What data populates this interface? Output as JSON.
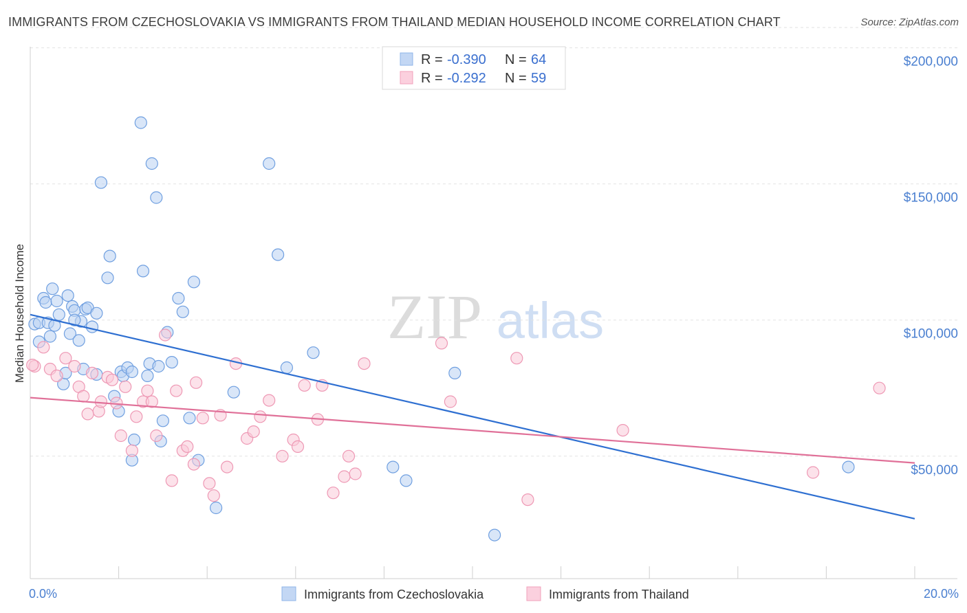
{
  "header": {
    "title": "IMMIGRANTS FROM CZECHOSLOVAKIA VS IMMIGRANTS FROM THAILAND MEDIAN HOUSEHOLD INCOME CORRELATION CHART",
    "source": "Source: ZipAtlas.com"
  },
  "watermark": {
    "zip": "ZIP",
    "atlas": "atlas"
  },
  "legend_box": {
    "rows": [
      {
        "r_label": "R = ",
        "r_value": "-0.390",
        "n_label": "N = ",
        "n_value": "64",
        "color": "#a9c6ef"
      },
      {
        "r_label": "R = ",
        "r_value": "-0.292",
        "n_label": "N = ",
        "n_value": "59",
        "color": "#f5b8cb"
      }
    ]
  },
  "chart_data": {
    "type": "scatter",
    "ylabel": "Median Household Income",
    "xlim": [
      0,
      20
    ],
    "ylim": [
      5000,
      210000
    ],
    "x_tick_labels": {
      "min": "0.0%",
      "max": "20.0%"
    },
    "y_ticks": [
      {
        "value": 50000,
        "label": "$50,000"
      },
      {
        "value": 100000,
        "label": "$100,000"
      },
      {
        "value": 150000,
        "label": "$150,000"
      },
      {
        "value": 200000,
        "label": "$200,000"
      }
    ],
    "grid": "horizontal dashed",
    "series": [
      {
        "name": "Immigrants from Czechoslovakia",
        "color": "#6f9fe0",
        "fill": "#b9d1f2",
        "trend": {
          "x": [
            0,
            20
          ],
          "y": [
            102000,
            27000
          ],
          "color": "#2e6fd1"
        },
        "points": [
          [
            0.1,
            98500
          ],
          [
            0.2,
            99000
          ],
          [
            0.3,
            108000
          ],
          [
            0.35,
            106500
          ],
          [
            0.4,
            99000
          ],
          [
            0.45,
            94000
          ],
          [
            0.5,
            111500
          ],
          [
            0.55,
            98000
          ],
          [
            0.65,
            102000
          ],
          [
            0.75,
            76500
          ],
          [
            0.8,
            80500
          ],
          [
            0.85,
            109000
          ],
          [
            0.9,
            95000
          ],
          [
            0.95,
            105000
          ],
          [
            1.0,
            103500
          ],
          [
            1.1,
            92500
          ],
          [
            1.15,
            99500
          ],
          [
            1.25,
            104000
          ],
          [
            1.3,
            104500
          ],
          [
            1.4,
            97500
          ],
          [
            1.5,
            102500
          ],
          [
            1.6,
            150500
          ],
          [
            1.5,
            80000
          ],
          [
            1.75,
            115500
          ],
          [
            1.8,
            123500
          ],
          [
            1.9,
            72000
          ],
          [
            2.05,
            81000
          ],
          [
            2.1,
            79500
          ],
          [
            2.2,
            82500
          ],
          [
            2.3,
            81000
          ],
          [
            2.35,
            56000
          ],
          [
            2.3,
            48500
          ],
          [
            2.5,
            172500
          ],
          [
            2.55,
            118000
          ],
          [
            2.65,
            79500
          ],
          [
            2.7,
            84000
          ],
          [
            2.75,
            157500
          ],
          [
            2.85,
            145000
          ],
          [
            2.9,
            83000
          ],
          [
            2.95,
            55500
          ],
          [
            3.0,
            63000
          ],
          [
            3.1,
            95500
          ],
          [
            3.2,
            84500
          ],
          [
            3.35,
            108000
          ],
          [
            3.45,
            103000
          ],
          [
            3.6,
            64000
          ],
          [
            3.7,
            114000
          ],
          [
            3.8,
            48500
          ],
          [
            4.2,
            31000
          ],
          [
            4.6,
            73500
          ],
          [
            5.4,
            157500
          ],
          [
            5.6,
            124000
          ],
          [
            5.8,
            82500
          ],
          [
            6.4,
            88000
          ],
          [
            8.2,
            46000
          ],
          [
            8.5,
            41000
          ],
          [
            9.6,
            80500
          ],
          [
            10.5,
            21000
          ],
          [
            18.5,
            46000
          ],
          [
            1.0,
            100000
          ],
          [
            0.6,
            107000
          ],
          [
            0.2,
            92000
          ],
          [
            1.2,
            82000
          ],
          [
            2.0,
            66500
          ]
        ]
      },
      {
        "name": "Immigrants from Thailand",
        "color": "#ee98b4",
        "fill": "#f9cbd9",
        "trend": {
          "x": [
            0,
            20
          ],
          "y": [
            71500,
            47500
          ],
          "color": "#e07098"
        },
        "points": [
          [
            0.1,
            83000
          ],
          [
            0.3,
            90000
          ],
          [
            0.45,
            82000
          ],
          [
            0.6,
            79500
          ],
          [
            0.8,
            86000
          ],
          [
            1.0,
            83000
          ],
          [
            1.1,
            75500
          ],
          [
            1.2,
            72000
          ],
          [
            1.3,
            65500
          ],
          [
            1.4,
            80500
          ],
          [
            1.55,
            66500
          ],
          [
            1.6,
            70000
          ],
          [
            1.75,
            79000
          ],
          [
            1.85,
            78000
          ],
          [
            1.95,
            69500
          ],
          [
            2.05,
            57500
          ],
          [
            2.15,
            75500
          ],
          [
            2.3,
            52000
          ],
          [
            2.4,
            64500
          ],
          [
            2.55,
            70000
          ],
          [
            2.65,
            74000
          ],
          [
            2.75,
            70000
          ],
          [
            2.85,
            57500
          ],
          [
            3.05,
            94500
          ],
          [
            3.2,
            41000
          ],
          [
            3.3,
            74000
          ],
          [
            3.45,
            52000
          ],
          [
            3.55,
            53500
          ],
          [
            3.7,
            47000
          ],
          [
            3.75,
            77000
          ],
          [
            3.9,
            64000
          ],
          [
            4.05,
            40000
          ],
          [
            4.15,
            35500
          ],
          [
            4.3,
            65000
          ],
          [
            4.45,
            46000
          ],
          [
            4.65,
            84000
          ],
          [
            4.9,
            56500
          ],
          [
            5.05,
            59000
          ],
          [
            5.2,
            64500
          ],
          [
            5.4,
            70500
          ],
          [
            5.7,
            50000
          ],
          [
            5.95,
            56000
          ],
          [
            6.05,
            53500
          ],
          [
            6.2,
            76000
          ],
          [
            6.5,
            63500
          ],
          [
            6.6,
            76000
          ],
          [
            6.85,
            36500
          ],
          [
            7.1,
            42500
          ],
          [
            7.2,
            50000
          ],
          [
            7.35,
            43500
          ],
          [
            7.55,
            84000
          ],
          [
            9.3,
            91500
          ],
          [
            9.5,
            70000
          ],
          [
            11.0,
            86000
          ],
          [
            11.25,
            34000
          ],
          [
            13.4,
            59500
          ],
          [
            17.7,
            44000
          ],
          [
            19.2,
            75000
          ],
          [
            0.05,
            83500
          ]
        ]
      }
    ]
  }
}
